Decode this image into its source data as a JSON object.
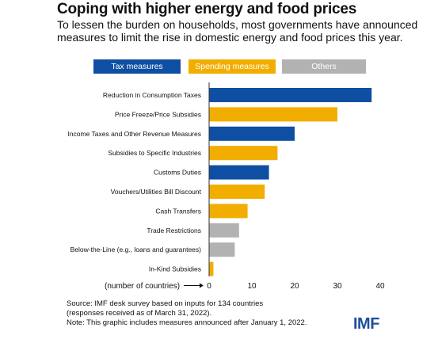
{
  "header": {
    "title": "Coping with higher energy and food prices",
    "subtitle": "To lessen the burden on households, most governments have announced measures to limit the rise in domestic energy and food prices this year."
  },
  "colors": {
    "tax": "#0f4fa3",
    "spending": "#f2ae00",
    "others": "#b2b2b2"
  },
  "legend": [
    {
      "label": "Tax measures",
      "group": "tax"
    },
    {
      "label": "Spending measures",
      "group": "spending"
    },
    {
      "label": "Others",
      "group": "others"
    }
  ],
  "chart_data": {
    "type": "bar",
    "orientation": "horizontal",
    "categories": [
      "Reduction in Consumption Taxes",
      "Price Freeze/Price Subsidies",
      "Income Taxes and Other Revenue Measures",
      "Subsidies to Specific Industries",
      "Customs Duties",
      "Vouchers/Utilities Bill Discount",
      "Cash Transfers",
      "Trade Restrictions",
      "Below-the-Line (e.g., loans and guarantees)",
      "In-Kind Subsidies"
    ],
    "values": [
      38,
      30,
      20,
      16,
      14,
      13,
      9,
      7,
      6,
      1
    ],
    "groups": [
      "tax",
      "spending",
      "tax",
      "spending",
      "tax",
      "spending",
      "spending",
      "others",
      "others",
      "spending"
    ],
    "xlim": [
      0,
      40
    ],
    "xticks": [
      0,
      10,
      20,
      30,
      40
    ],
    "axis_note": "(number of countries)",
    "grid": false,
    "legend_position": "top"
  },
  "footer": {
    "source_lines": [
      "Source: IMF desk survey based on inputs for 134 countries",
      "(responses received as of March 31, 2022).",
      "Note: This graphic includes measures announced after January 1, 2022."
    ],
    "logo": "IMF"
  }
}
